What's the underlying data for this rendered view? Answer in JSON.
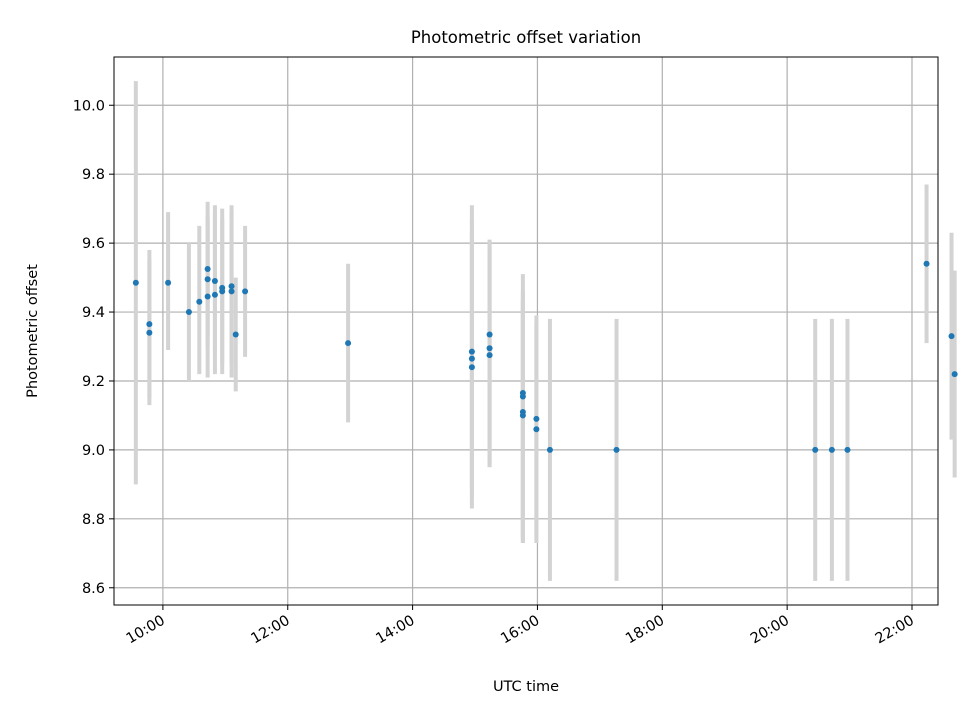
{
  "colors": {
    "point": "#1f77b4",
    "errorbar": "#d3d3d3",
    "grid": "#b0b0b0",
    "axis": "#000000",
    "background": "#ffffff"
  },
  "chart_data": {
    "type": "scatter",
    "title": "Photometric offset variation",
    "xlabel": "UTC time",
    "ylabel": "Photometric offset",
    "xlim": [
      "09:13",
      "22:25"
    ],
    "ylim": [
      8.55,
      10.14
    ],
    "x_ticks": [
      "10:00",
      "12:00",
      "14:00",
      "16:00",
      "18:00",
      "20:00",
      "22:00"
    ],
    "y_ticks": [
      "8.6",
      "8.8",
      "9.0",
      "9.2",
      "9.4",
      "9.6",
      "9.8",
      "10.0"
    ],
    "grid": true,
    "x_tick_rotation": 30,
    "points": [
      {
        "x": "09:34",
        "y": 9.485,
        "ylow": 8.9,
        "yhigh": 10.07
      },
      {
        "x": "09:47",
        "y": 9.365,
        "ylow": 9.15,
        "yhigh": 9.58
      },
      {
        "x": "09:47",
        "y": 9.34,
        "ylow": 9.13,
        "yhigh": 9.55
      },
      {
        "x": "10:05",
        "y": 9.485,
        "ylow": 9.29,
        "yhigh": 9.69
      },
      {
        "x": "10:25",
        "y": 9.4,
        "ylow": 9.2,
        "yhigh": 9.6
      },
      {
        "x": "10:35",
        "y": 9.43,
        "ylow": 9.22,
        "yhigh": 9.65
      },
      {
        "x": "10:43",
        "y": 9.525,
        "ylow": 9.33,
        "yhigh": 9.72
      },
      {
        "x": "10:43",
        "y": 9.495,
        "ylow": 9.3,
        "yhigh": 9.68
      },
      {
        "x": "10:43",
        "y": 9.445,
        "ylow": 9.21,
        "yhigh": 9.67
      },
      {
        "x": "10:50",
        "y": 9.49,
        "ylow": 9.28,
        "yhigh": 9.71
      },
      {
        "x": "10:50",
        "y": 9.45,
        "ylow": 9.22,
        "yhigh": 9.69
      },
      {
        "x": "10:57",
        "y": 9.47,
        "ylow": 9.25,
        "yhigh": 9.7
      },
      {
        "x": "10:57",
        "y": 9.46,
        "ylow": 9.22,
        "yhigh": 9.67
      },
      {
        "x": "11:06",
        "y": 9.475,
        "ylow": 9.25,
        "yhigh": 9.71
      },
      {
        "x": "11:06",
        "y": 9.46,
        "ylow": 9.21,
        "yhigh": 9.69
      },
      {
        "x": "11:10",
        "y": 9.335,
        "ylow": 9.17,
        "yhigh": 9.5
      },
      {
        "x": "11:19",
        "y": 9.46,
        "ylow": 9.27,
        "yhigh": 9.65
      },
      {
        "x": "12:58",
        "y": 9.31,
        "ylow": 9.08,
        "yhigh": 9.54
      },
      {
        "x": "14:57",
        "y": 9.285,
        "ylow": 8.83,
        "yhigh": 9.71
      },
      {
        "x": "14:57",
        "y": 9.265,
        "ylow": 8.86,
        "yhigh": 9.67
      },
      {
        "x": "14:57",
        "y": 9.24,
        "ylow": 8.89,
        "yhigh": 9.63
      },
      {
        "x": "15:14",
        "y": 9.335,
        "ylow": 8.96,
        "yhigh": 9.61
      },
      {
        "x": "15:14",
        "y": 9.295,
        "ylow": 8.95,
        "yhigh": 9.6
      },
      {
        "x": "15:14",
        "y": 9.275,
        "ylow": 8.95,
        "yhigh": 9.58
      },
      {
        "x": "15:46",
        "y": 9.165,
        "ylow": 8.73,
        "yhigh": 9.51
      },
      {
        "x": "15:46",
        "y": 9.155,
        "ylow": 8.73,
        "yhigh": 9.46
      },
      {
        "x": "15:46",
        "y": 9.11,
        "ylow": 8.74,
        "yhigh": 9.44
      },
      {
        "x": "15:46",
        "y": 9.1,
        "ylow": 8.75,
        "yhigh": 9.43
      },
      {
        "x": "15:59",
        "y": 9.09,
        "ylow": 8.73,
        "yhigh": 9.39
      },
      {
        "x": "15:59",
        "y": 9.06,
        "ylow": 8.74,
        "yhigh": 9.37
      },
      {
        "x": "16:12",
        "y": 9.0,
        "ylow": 8.62,
        "yhigh": 9.38
      },
      {
        "x": "17:16",
        "y": 9.0,
        "ylow": 8.62,
        "yhigh": 9.38
      },
      {
        "x": "20:27",
        "y": 9.0,
        "ylow": 8.62,
        "yhigh": 9.38
      },
      {
        "x": "20:43",
        "y": 9.0,
        "ylow": 8.62,
        "yhigh": 9.38
      },
      {
        "x": "20:58",
        "y": 9.0,
        "ylow": 8.62,
        "yhigh": 9.38
      },
      {
        "x": "22:14",
        "y": 9.54,
        "ylow": 9.31,
        "yhigh": 9.77
      },
      {
        "x": "22:38",
        "y": 9.33,
        "ylow": 9.03,
        "yhigh": 9.63
      },
      {
        "x": "22:41",
        "y": 9.22,
        "ylow": 8.92,
        "yhigh": 9.52
      }
    ]
  }
}
